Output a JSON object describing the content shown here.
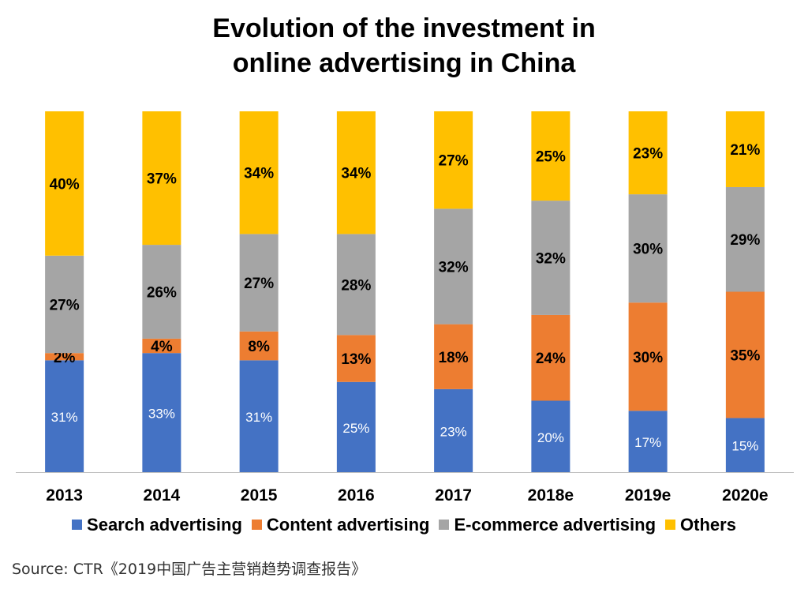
{
  "title": {
    "line1": "Evolution of the investment in",
    "line2": "online advertising in China"
  },
  "source": "Source: CTR《2019中国广告主营销趋势调查报告》",
  "colors": {
    "search": "#4472C4",
    "content": "#ED7D31",
    "ecommerce": "#A5A5A5",
    "others": "#FFC000"
  },
  "chart_data": {
    "type": "bar",
    "stacked": true,
    "percent_stacked": true,
    "categories": [
      "2013",
      "2014",
      "2015",
      "2016",
      "2017",
      "2018e",
      "2019e",
      "2020e"
    ],
    "series": [
      {
        "name": "Search advertising",
        "values": [
          31,
          33,
          31,
          25,
          23,
          20,
          17,
          15
        ],
        "color": "#4472C4",
        "label_color": "#ffffff"
      },
      {
        "name": "Content advertising",
        "values": [
          2,
          4,
          8,
          13,
          18,
          24,
          30,
          35
        ],
        "color": "#ED7D31",
        "label_color": "#000000"
      },
      {
        "name": "E-commerce advertising",
        "values": [
          27,
          26,
          27,
          28,
          32,
          32,
          30,
          29
        ],
        "color": "#A5A5A5",
        "label_color": "#000000"
      },
      {
        "name": "Others",
        "values": [
          40,
          37,
          34,
          34,
          27,
          25,
          23,
          21
        ],
        "color": "#FFC000",
        "label_color": "#000000"
      }
    ],
    "value_suffix": "%",
    "legend_position": "bottom",
    "grid": false
  }
}
